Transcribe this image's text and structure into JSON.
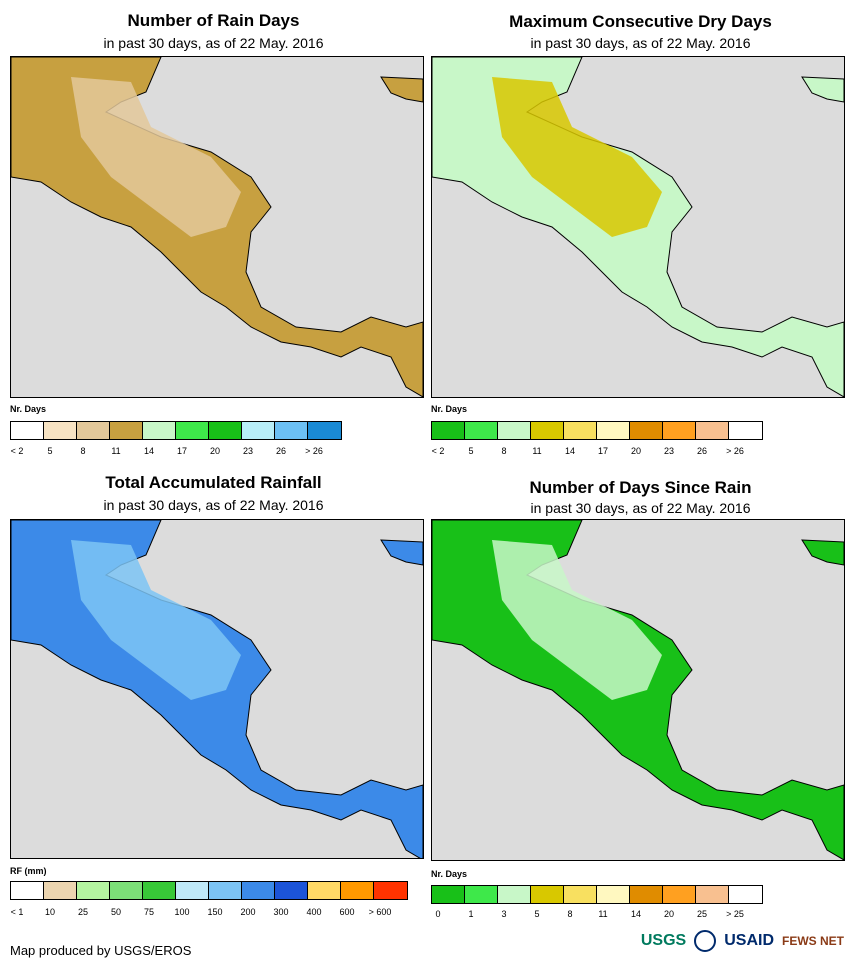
{
  "panels": [
    {
      "title": "Number of Rain Days",
      "subtitle": "in past 30 days, as of 22 May. 2016",
      "legend_title": "Nr. Days",
      "legend_colors": [
        "#ffffff",
        "#f7e3c3",
        "#e3c89a",
        "#c7a040",
        "#c8f7c8",
        "#3ee84a",
        "#18c018",
        "#b8eef8",
        "#6cc0f4",
        "#1a8ad4"
      ],
      "legend_labels": [
        "< 2",
        "5",
        "8",
        "11",
        "14",
        "17",
        "20",
        "23",
        "26",
        "> 26"
      ]
    },
    {
      "title": "Maximum Consecutive Dry Days",
      "subtitle": "in past 30 days, as of 22 May. 2016",
      "legend_title": "Nr. Days",
      "legend_colors": [
        "#18c018",
        "#3ee84a",
        "#c8f7c8",
        "#d8c800",
        "#f8e060",
        "#fff8c0",
        "#e08c00",
        "#ffa020",
        "#f8c090",
        "#ffffff"
      ],
      "legend_labels": [
        "< 2",
        "5",
        "8",
        "11",
        "14",
        "17",
        "20",
        "23",
        "26",
        "> 26"
      ]
    },
    {
      "title": "Total Accumulated Rainfall",
      "subtitle": "in past 30 days, as of 22 May. 2016",
      "legend_title": "RF (mm)",
      "legend_colors": [
        "#ffffff",
        "#ecd5b0",
        "#b4f4a0",
        "#7cdf78",
        "#38c838",
        "#bfe9f8",
        "#7cc4f4",
        "#3c8ae8",
        "#1c54d8",
        "#ffd966",
        "#ff9900",
        "#ff3300"
      ],
      "legend_labels": [
        "< 1",
        "10",
        "25",
        "50",
        "75",
        "100",
        "150",
        "200",
        "300",
        "400",
        "600",
        "> 600"
      ]
    },
    {
      "title": "Number of Days Since Rain",
      "subtitle": "in past 30 days, as of 22 May. 2016",
      "legend_title": "Nr. Days",
      "legend_colors": [
        "#18c018",
        "#3ee84a",
        "#c8f7c8",
        "#d8c800",
        "#f8e060",
        "#fff8c0",
        "#e08c00",
        "#ffa020",
        "#f8c090",
        "#ffffff"
      ],
      "legend_labels": [
        "0",
        "1",
        "3",
        "5",
        "8",
        "11",
        "14",
        "20",
        "25",
        "> 25"
      ]
    }
  ],
  "footer": "Map produced by USGS/EROS",
  "logos": {
    "usgs": "USGS",
    "usaid": "USAID",
    "fews": "FEWS NET"
  },
  "map_fill": [
    "#c7a040",
    "#c8f7c8",
    "#3c8ae8",
    "#18c018"
  ],
  "map_fill2": [
    "#e3c89a",
    "#d8c800",
    "#7cc4f4",
    "#c8f7c8"
  ]
}
